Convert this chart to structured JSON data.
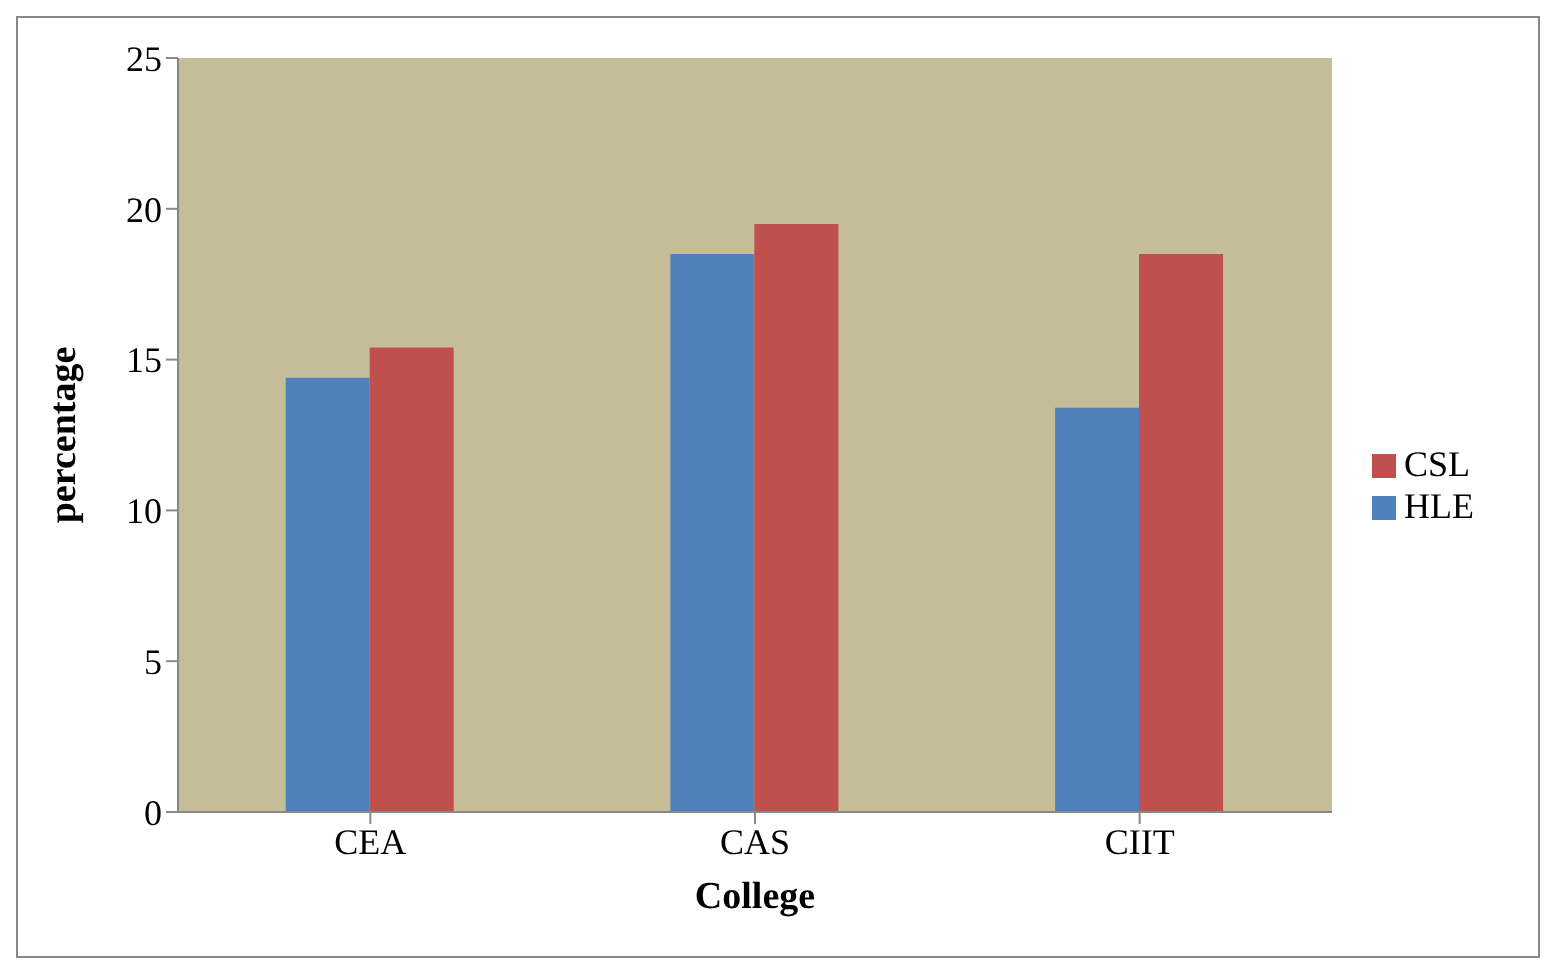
{
  "chart_data": {
    "type": "bar",
    "xlabel": "College",
    "ylabel": "percentage",
    "categories": [
      "CEA",
      "CAS",
      "CIIT"
    ],
    "series": [
      {
        "name": "HLE",
        "color": "#4f81bd",
        "values": [
          14.4,
          18.5,
          13.4
        ]
      },
      {
        "name": "CSL",
        "color": "#c0504d",
        "values": [
          15.4,
          19.5,
          18.5
        ]
      }
    ],
    "ylim": [
      0,
      25
    ],
    "yticks": [
      0,
      5,
      10,
      15,
      20,
      25
    ],
    "grid": false,
    "legend": "right"
  }
}
